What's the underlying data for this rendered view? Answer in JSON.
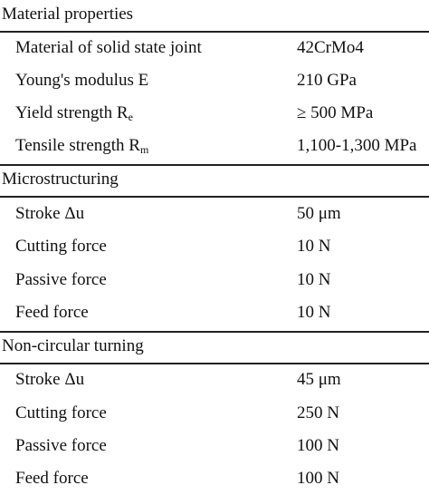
{
  "sections": [
    {
      "title": "Material properties",
      "rows": [
        {
          "label": "Material of solid state joint",
          "sub": "",
          "value": "42CrMo4"
        },
        {
          "label": "Young's modulus E",
          "sub": "",
          "value": "210 GPa"
        },
        {
          "label": "Yield strength R",
          "sub": "e",
          "value": "≥ 500 MPa"
        },
        {
          "label": "Tensile strength R",
          "sub": "m",
          "value": "1,100-1,300 MPa"
        }
      ]
    },
    {
      "title": "Microstructuring",
      "rows": [
        {
          "label": "Stroke Δu",
          "sub": "",
          "value": "50 μm"
        },
        {
          "label": "Cutting force",
          "sub": "",
          "value": "10 N"
        },
        {
          "label": "Passive force",
          "sub": "",
          "value": "10 N"
        },
        {
          "label": "Feed force",
          "sub": "",
          "value": "10 N"
        }
      ]
    },
    {
      "title": "Non-circular turning",
      "rows": [
        {
          "label": "Stroke Δu",
          "sub": "",
          "value": "45 μm"
        },
        {
          "label": "Cutting force",
          "sub": "",
          "value": "250 N"
        },
        {
          "label": "Passive force",
          "sub": "",
          "value": "100 N"
        },
        {
          "label": "Feed force",
          "sub": "",
          "value": "100 N"
        }
      ]
    }
  ]
}
